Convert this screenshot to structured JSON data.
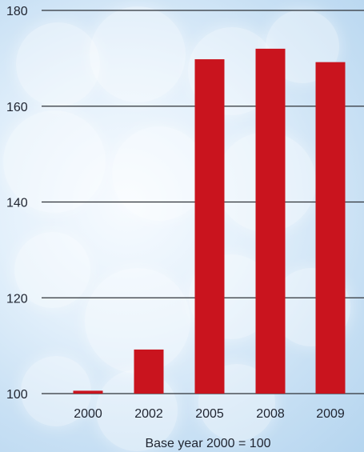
{
  "chart_data": {
    "type": "bar",
    "categories": [
      "2000",
      "2002",
      "2005",
      "2008",
      "2009"
    ],
    "values": [
      100.6,
      109.2,
      169.8,
      172.0,
      169.2
    ],
    "title": "",
    "xlabel": "Base year 2000 = 100",
    "ylabel": "",
    "ylim": [
      100,
      180
    ],
    "yticks": [
      "100",
      "120",
      "140",
      "160",
      "180"
    ],
    "grid": true,
    "legend": "none"
  },
  "colors": {
    "bar": "#c9141e",
    "grid": "#2f3338",
    "text": "#1f2430"
  }
}
